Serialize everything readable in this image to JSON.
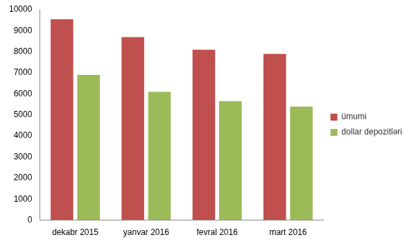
{
  "chart_data": {
    "type": "bar",
    "categories": [
      "dekabr 2015",
      "yanvar 2016",
      "fevral 2016",
      "mart 2016"
    ],
    "series": [
      {
        "name": "ümumi",
        "color": "#c0504d",
        "values": [
          9550,
          8700,
          8100,
          7900
        ]
      },
      {
        "name": "dollar depozitləri",
        "color": "#9bbb59",
        "values": [
          6900,
          6100,
          5650,
          5400
        ]
      }
    ],
    "ylim": [
      0,
      10000
    ],
    "yticks": [
      0,
      1000,
      2000,
      3000,
      4000,
      5000,
      6000,
      7000,
      8000,
      9000,
      10000
    ],
    "grid": false,
    "legend": "right"
  }
}
